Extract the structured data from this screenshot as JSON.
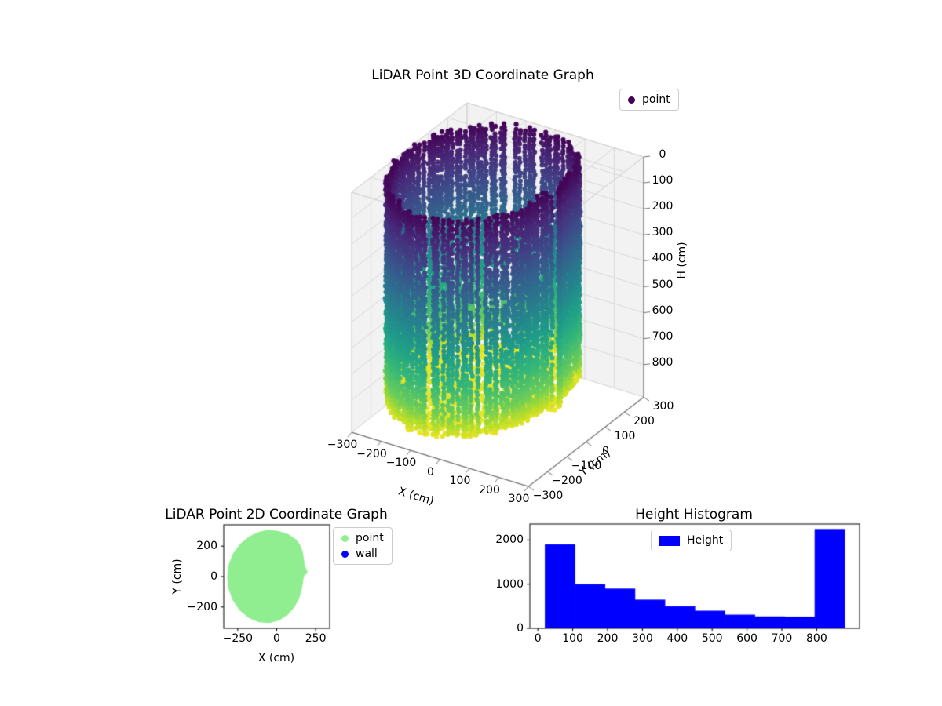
{
  "figure": {
    "background": "#ffffff"
  },
  "chart_data": [
    {
      "id": "lidar3d",
      "type": "scatter3d",
      "title": "LiDAR Point 3D Coordinate Graph",
      "legend": {
        "position": "upper right",
        "entries": [
          {
            "label": "point",
            "color": "#440154",
            "marker": "circle"
          }
        ]
      },
      "axes": {
        "x": {
          "label": "X (cm)",
          "range": [
            -300,
            300
          ],
          "ticks": [
            {
              "v": -300,
              "label": "−300"
            },
            {
              "v": -200,
              "label": "−200"
            },
            {
              "v": -100,
              "label": "−100"
            },
            {
              "v": 0,
              "label": "0"
            },
            {
              "v": 100,
              "label": "100"
            },
            {
              "v": 200,
              "label": "200"
            },
            {
              "v": 300,
              "label": "300"
            }
          ]
        },
        "y": {
          "label": "Y (cm)",
          "range": [
            -300,
            300
          ],
          "ticks": [
            {
              "v": -300,
              "label": "−300"
            },
            {
              "v": -200,
              "label": "−200"
            },
            {
              "v": -100,
              "label": "−100"
            },
            {
              "v": 0,
              "label": "0"
            },
            {
              "v": 100,
              "label": "100"
            },
            {
              "v": 200,
              "label": "200"
            },
            {
              "v": 300,
              "label": "300"
            }
          ]
        },
        "z": {
          "label": "H (cm)",
          "range": [
            0,
            925
          ],
          "inverted_display": "0 at top",
          "ticks": [
            {
              "v": 0,
              "label": "0"
            },
            {
              "v": 100,
              "label": "100"
            },
            {
              "v": 200,
              "label": "200"
            },
            {
              "v": 300,
              "label": "300"
            },
            {
              "v": 400,
              "label": "400"
            },
            {
              "v": 500,
              "label": "500"
            },
            {
              "v": 600,
              "label": "600"
            },
            {
              "v": 700,
              "label": "700"
            },
            {
              "v": 800,
              "label": "800"
            }
          ]
        }
      },
      "colormap": {
        "name": "viridis",
        "stops": [
          "#440154",
          "#482878",
          "#3e4989",
          "#31688e",
          "#26828e",
          "#1f9e89",
          "#35b779",
          "#6ece58",
          "#b5de2b",
          "#fde725"
        ]
      },
      "point_cloud": {
        "shape": "cylindrical room scan (walls coloured by height, floor in yellow)",
        "footprint_center": [
          -70,
          0
        ],
        "wall_columns": 132,
        "vertical_spacing_cm": 13,
        "wall_top_h_cm": [
          4,
          34
        ],
        "wall_bottom_h_cm": 850,
        "floor_h_cm": [
          845,
          860
        ],
        "h_min": 0,
        "h_max": 860
      }
    },
    {
      "id": "lidar2d",
      "type": "scatter2d",
      "title": "LiDAR Point 2D Coordinate Graph",
      "xlabel": "X (cm)",
      "ylabel": "Y (cm)",
      "xlim": [
        -340,
        340
      ],
      "ylim": [
        -340,
        340
      ],
      "xticks": [
        {
          "v": -250,
          "label": "−250"
        },
        {
          "v": 0,
          "label": "0"
        },
        {
          "v": 250,
          "label": "250"
        }
      ],
      "yticks": [
        {
          "v": -200,
          "label": "−200"
        },
        {
          "v": 0,
          "label": "0"
        },
        {
          "v": 200,
          "label": "200"
        }
      ],
      "legend": {
        "position": "upper right outside",
        "entries": [
          {
            "label": "point",
            "color": "#90ee90",
            "marker": "circle"
          },
          {
            "label": "wall",
            "color": "#0000ff",
            "marker": "circle"
          }
        ]
      },
      "point_color": "#90ee90",
      "point_region_outline": [
        [
          -60,
          306
        ],
        [
          10,
          300
        ],
        [
          75,
          278
        ],
        [
          125,
          243
        ],
        [
          152,
          205
        ],
        [
          168,
          160
        ],
        [
          175,
          115
        ],
        [
          180,
          70
        ],
        [
          196,
          38
        ],
        [
          198,
          22
        ],
        [
          178,
          8
        ],
        [
          172,
          -12
        ],
        [
          168,
          -48
        ],
        [
          158,
          -95
        ],
        [
          143,
          -145
        ],
        [
          115,
          -200
        ],
        [
          72,
          -250
        ],
        [
          18,
          -287
        ],
        [
          -45,
          -305
        ],
        [
          -115,
          -300
        ],
        [
          -180,
          -272
        ],
        [
          -238,
          -222
        ],
        [
          -283,
          -155
        ],
        [
          -310,
          -78
        ],
        [
          -318,
          0
        ],
        [
          -308,
          80
        ],
        [
          -280,
          152
        ],
        [
          -235,
          215
        ],
        [
          -172,
          266
        ],
        [
          -115,
          293
        ]
      ]
    },
    {
      "id": "heightHist",
      "type": "bar",
      "title": "Height Histogram",
      "legend": {
        "position": "upper center",
        "entries": [
          {
            "label": "Height",
            "color": "#0000ff",
            "marker": "rect"
          }
        ]
      },
      "bar_color": "#0000ff",
      "bin_edges": [
        20,
        106,
        192,
        278,
        364,
        450,
        536,
        622,
        708,
        794,
        880
      ],
      "counts": [
        1900,
        1000,
        900,
        650,
        500,
        400,
        310,
        270,
        265,
        2250
      ],
      "xticks": [
        0,
        100,
        200,
        300,
        400,
        500,
        600,
        700,
        800
      ],
      "yticks": [
        0,
        1000,
        2000
      ],
      "xlim": [
        -23,
        923
      ],
      "ylim": [
        0,
        2362
      ]
    }
  ]
}
